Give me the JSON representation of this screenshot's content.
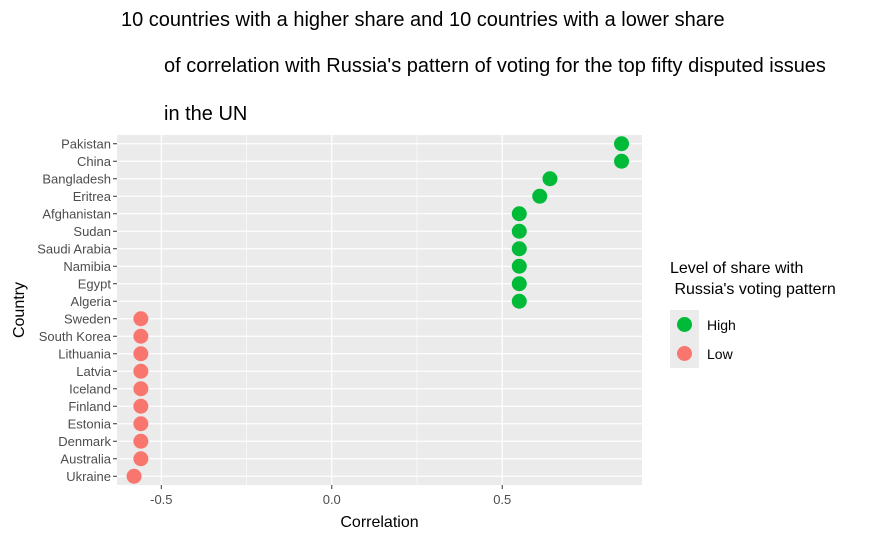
{
  "title_lines": [
    "10 countries with a higher share and 10 countries with a lower share",
    "of correlation with Russia's pattern of voting for the top fifty disputed issues",
    "in the UN"
  ],
  "legend": {
    "title": "Level of share with\n Russia's voting pattern",
    "items": [
      {
        "label": "High",
        "color": "#00BA38"
      },
      {
        "label": "Low",
        "color": "#F8766D"
      }
    ]
  },
  "chart_data": {
    "type": "scatter",
    "xlabel": "Correlation",
    "ylabel": "Country",
    "xlim": [
      -0.63,
      0.91
    ],
    "x_ticks": [
      -0.5,
      0.0,
      0.5
    ],
    "x_tick_labels": [
      "-0.5",
      "0.0",
      "0.5"
    ],
    "grid": true,
    "legend_position": "right",
    "categories": [
      "Pakistan",
      "China",
      "Bangladesh",
      "Eritrea",
      "Afghanistan",
      "Sudan",
      "Saudi Arabia",
      "Namibia",
      "Egypt",
      "Algeria",
      "Sweden",
      "South Korea",
      "Lithuania",
      "Latvia",
      "Iceland",
      "Finland",
      "Estonia",
      "Denmark",
      "Australia",
      "Ukraine"
    ],
    "series": [
      {
        "name": "High",
        "color": "#00BA38",
        "points": [
          {
            "country": "Pakistan",
            "x": 0.85
          },
          {
            "country": "China",
            "x": 0.85
          },
          {
            "country": "Bangladesh",
            "x": 0.64
          },
          {
            "country": "Eritrea",
            "x": 0.61
          },
          {
            "country": "Afghanistan",
            "x": 0.55
          },
          {
            "country": "Sudan",
            "x": 0.55
          },
          {
            "country": "Saudi Arabia",
            "x": 0.55
          },
          {
            "country": "Namibia",
            "x": 0.55
          },
          {
            "country": "Egypt",
            "x": 0.55
          },
          {
            "country": "Algeria",
            "x": 0.55
          }
        ]
      },
      {
        "name": "Low",
        "color": "#F8766D",
        "points": [
          {
            "country": "Sweden",
            "x": -0.56
          },
          {
            "country": "South Korea",
            "x": -0.56
          },
          {
            "country": "Lithuania",
            "x": -0.56
          },
          {
            "country": "Latvia",
            "x": -0.56
          },
          {
            "country": "Iceland",
            "x": -0.56
          },
          {
            "country": "Finland",
            "x": -0.56
          },
          {
            "country": "Estonia",
            "x": -0.56
          },
          {
            "country": "Denmark",
            "x": -0.56
          },
          {
            "country": "Australia",
            "x": -0.56
          },
          {
            "country": "Ukraine",
            "x": -0.58
          }
        ]
      }
    ]
  }
}
